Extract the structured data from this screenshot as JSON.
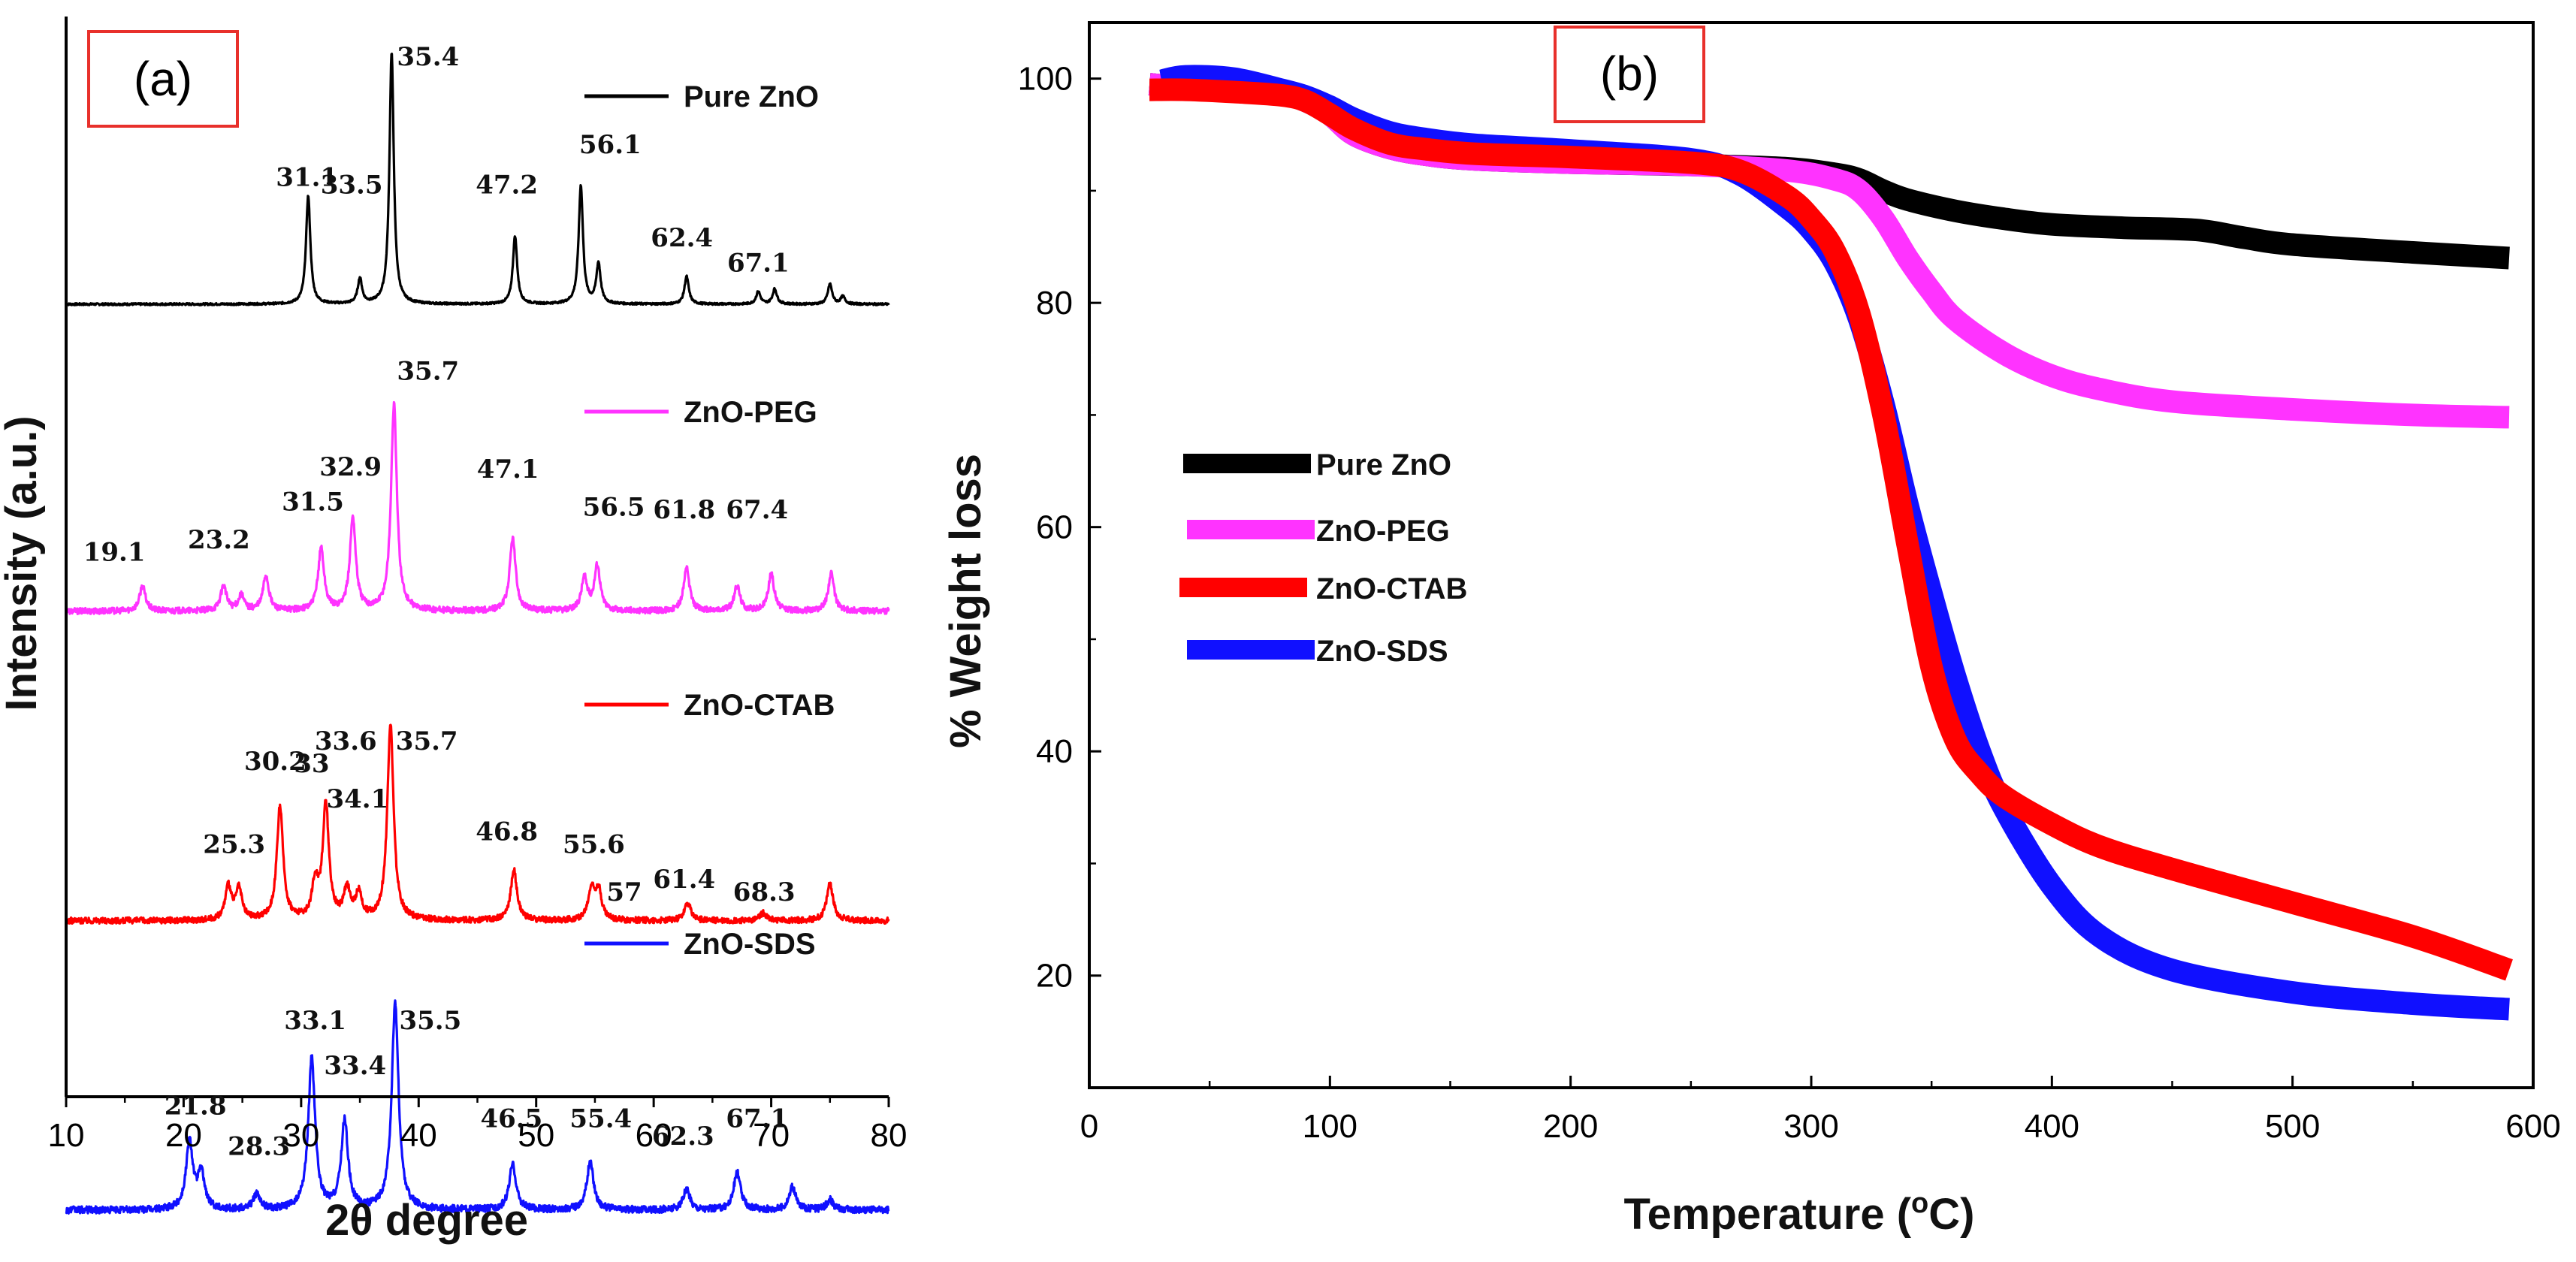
{
  "colors": {
    "pure": "#000000",
    "peg": "#ff33ff",
    "ctab": "#ff0000",
    "sds": "#1010ff",
    "label_box": "#e8302b"
  },
  "chart_data": [
    {
      "id": "a",
      "panel_label": "(a)",
      "type": "line",
      "title": "",
      "xlabel": "2θ degree",
      "ylabel": "Intensity (a.u.)",
      "xlim": [
        10,
        80
      ],
      "xticks": [
        10,
        20,
        30,
        40,
        50,
        60,
        70,
        80
      ],
      "grid": false,
      "legend": "inline per trace (right)",
      "series": [
        {
          "name": "Pure ZnO",
          "color_key": "pure",
          "baseline": 0,
          "noise": 0.004,
          "peak_width": 0.22,
          "peaks": [
            [
              30.6,
              0.43
            ],
            [
              35.0,
              0.1
            ],
            [
              37.7,
              1.0
            ],
            [
              48.2,
              0.27
            ],
            [
              53.8,
              0.47
            ],
            [
              55.3,
              0.16
            ],
            [
              62.8,
              0.11
            ],
            [
              68.9,
              0.05
            ],
            [
              70.3,
              0.06
            ],
            [
              75.0,
              0.08
            ],
            [
              76.1,
              0.03
            ]
          ],
          "labels": [
            {
              "text": "31.1",
              "x": 30.5,
              "y": 0.47
            },
            {
              "text": "33.5",
              "x": 34.3,
              "y": 0.44
            },
            {
              "text": "35.4",
              "x": 40.8,
              "y": 0.95
            },
            {
              "text": "47.2",
              "x": 47.5,
              "y": 0.44
            },
            {
              "text": "56.1",
              "x": 56.3,
              "y": 0.6
            },
            {
              "text": "62.4",
              "x": 62.4,
              "y": 0.23
            },
            {
              "text": "67.1",
              "x": 68.9,
              "y": 0.13
            }
          ]
        },
        {
          "name": "ZnO-PEG",
          "color_key": "peg",
          "baseline": -1.22,
          "noise": 0.012,
          "peak_width": 0.3,
          "peaks": [
            [
              16.5,
              0.1
            ],
            [
              23.4,
              0.1
            ],
            [
              24.9,
              0.06
            ],
            [
              27.0,
              0.14
            ],
            [
              31.7,
              0.25
            ],
            [
              34.4,
              0.37
            ],
            [
              37.9,
              0.82
            ],
            [
              48.0,
              0.29
            ],
            [
              54.1,
              0.13
            ],
            [
              55.2,
              0.18
            ],
            [
              62.8,
              0.17
            ],
            [
              67.1,
              0.1
            ],
            [
              70.0,
              0.15
            ],
            [
              75.1,
              0.15
            ]
          ],
          "labels": [
            {
              "text": "19.1",
              "x": 14.1,
              "y": -1.02
            },
            {
              "text": "23.2",
              "x": 23.0,
              "y": -0.97
            },
            {
              "text": "31.5",
              "x": 31.0,
              "y": -0.82
            },
            {
              "text": "32.9",
              "x": 34.2,
              "y": -0.68
            },
            {
              "text": "35.7",
              "x": 40.8,
              "y": -0.3
            },
            {
              "text": "47.1",
              "x": 47.6,
              "y": -0.69
            },
            {
              "text": "56.5",
              "x": 56.6,
              "y": -0.84
            },
            {
              "text": "61.8",
              "x": 62.6,
              "y": -0.85
            },
            {
              "text": "67.4",
              "x": 68.8,
              "y": -0.85
            }
          ]
        },
        {
          "name": "ZnO-CTAB",
          "color_key": "ctab",
          "baseline": -2.45,
          "noise": 0.012,
          "peak_width": 0.32,
          "peaks": [
            [
              23.8,
              0.13
            ],
            [
              24.7,
              0.12
            ],
            [
              28.2,
              0.45
            ],
            [
              31.2,
              0.14
            ],
            [
              32.1,
              0.45
            ],
            [
              33.9,
              0.12
            ],
            [
              34.9,
              0.1
            ],
            [
              37.6,
              0.78
            ],
            [
              48.1,
              0.2
            ],
            [
              54.7,
              0.12
            ],
            [
              55.3,
              0.12
            ],
            [
              62.9,
              0.07
            ],
            [
              69.3,
              0.03
            ],
            [
              75.0,
              0.15
            ]
          ],
          "labels": [
            {
              "text": "25.3",
              "x": 24.3,
              "y": -2.18
            },
            {
              "text": "30.2",
              "x": 27.8,
              "y": -1.85
            },
            {
              "text": "33",
              "x": 30.9,
              "y": -1.86
            },
            {
              "text": "33.6",
              "x": 33.8,
              "y": -1.77
            },
            {
              "text": "34.1",
              "x": 34.8,
              "y": -2.0
            },
            {
              "text": "35.7",
              "x": 40.7,
              "y": -1.77
            },
            {
              "text": "46.8",
              "x": 47.5,
              "y": -2.13
            },
            {
              "text": "55.6",
              "x": 54.9,
              "y": -2.18
            },
            {
              "text": "57",
              "x": 57.5,
              "y": -2.37
            },
            {
              "text": "61.4",
              "x": 62.6,
              "y": -2.32
            },
            {
              "text": "68.3",
              "x": 69.4,
              "y": -2.37
            }
          ]
        },
        {
          "name": "ZnO-SDS",
          "color_key": "sds",
          "baseline": -3.6,
          "noise": 0.014,
          "peak_width": 0.35,
          "peaks": [
            [
              20.5,
              0.27
            ],
            [
              21.5,
              0.14
            ],
            [
              26.2,
              0.06
            ],
            [
              30.9,
              0.6
            ],
            [
              33.7,
              0.35
            ],
            [
              38.0,
              0.82
            ],
            [
              48.0,
              0.18
            ],
            [
              54.6,
              0.19
            ],
            [
              62.8,
              0.08
            ],
            [
              67.1,
              0.15
            ],
            [
              71.8,
              0.09
            ],
            [
              75.0,
              0.04
            ]
          ],
          "labels": [
            {
              "text": "21.8",
              "x": 21.0,
              "y": -3.22
            },
            {
              "text": "28.3",
              "x": 26.4,
              "y": -3.38
            },
            {
              "text": "33.1",
              "x": 31.2,
              "y": -2.88
            },
            {
              "text": "33.4",
              "x": 34.6,
              "y": -3.06
            },
            {
              "text": "35.5",
              "x": 41.0,
              "y": -2.88
            },
            {
              "text": "46.5",
              "x": 47.9,
              "y": -3.27
            },
            {
              "text": "55.4",
              "x": 55.5,
              "y": -3.27
            },
            {
              "text": "62.3",
              "x": 62.5,
              "y": -3.34
            },
            {
              "text": "67.1",
              "x": 68.8,
              "y": -3.27
            }
          ]
        }
      ]
    },
    {
      "id": "b",
      "panel_label": "(b)",
      "type": "line",
      "title": "",
      "xlabel": "Temperature (°C)",
      "ylabel": "% Weight loss",
      "xlim": [
        0,
        600
      ],
      "ylim": [
        10,
        105
      ],
      "xticks": [
        0,
        100,
        200,
        300,
        400,
        500,
        600
      ],
      "yticks": [
        20,
        40,
        60,
        80,
        100
      ],
      "grid": false,
      "legend": "center-left",
      "series": [
        {
          "name": "Pure ZnO",
          "color_key": "pure",
          "x": [
            25,
            40,
            60,
            80,
            90,
            100,
            110,
            125,
            140,
            160,
            200,
            250,
            290,
            310,
            320,
            330,
            340,
            360,
            380,
            400,
            430,
            460,
            480,
            500,
            550,
            590
          ],
          "y": [
            99.5,
            99.2,
            99.0,
            98.6,
            98.0,
            96.8,
            95.0,
            93.8,
            93.2,
            92.8,
            92.5,
            92.3,
            92.0,
            91.5,
            91.0,
            90.0,
            89.2,
            88.2,
            87.5,
            87.0,
            86.7,
            86.5,
            85.8,
            85.2,
            84.5,
            84.0
          ]
        },
        {
          "name": "ZnO-PEG",
          "color_key": "peg",
          "x": [
            25,
            40,
            60,
            80,
            90,
            100,
            110,
            125,
            140,
            160,
            200,
            250,
            290,
            310,
            320,
            330,
            340,
            350,
            360,
            380,
            400,
            420,
            450,
            500,
            550,
            590
          ],
          "y": [
            99.5,
            99.2,
            99.0,
            98.6,
            98.0,
            96.8,
            95.0,
            93.8,
            93.2,
            92.8,
            92.5,
            92.3,
            91.8,
            91.0,
            90.0,
            87.5,
            84.0,
            81.0,
            78.5,
            75.5,
            73.5,
            72.3,
            71.2,
            70.5,
            70.0,
            69.8
          ]
        },
        {
          "name": "ZnO-CTAB",
          "color_key": "ctab",
          "x": [
            25,
            40,
            60,
            80,
            90,
            100,
            110,
            125,
            140,
            160,
            200,
            250,
            270,
            290,
            300,
            310,
            320,
            330,
            340,
            350,
            360,
            370,
            380,
            400,
            420,
            450,
            500,
            550,
            590
          ],
          "y": [
            99.0,
            99.0,
            98.8,
            98.5,
            98.0,
            96.8,
            95.5,
            94.2,
            93.7,
            93.3,
            93.0,
            92.5,
            91.8,
            89.5,
            87.5,
            84.5,
            79.0,
            70.0,
            58.5,
            47.5,
            41.0,
            38.0,
            36.0,
            33.5,
            31.5,
            29.5,
            26.5,
            23.5,
            20.5
          ]
        },
        {
          "name": "ZnO-SDS",
          "color_key": "sds",
          "x": [
            30,
            40,
            60,
            80,
            90,
            100,
            110,
            125,
            140,
            160,
            200,
            250,
            270,
            290,
            300,
            310,
            320,
            330,
            340,
            350,
            360,
            370,
            380,
            400,
            420,
            450,
            500,
            550,
            590
          ],
          "y": [
            99.8,
            100.2,
            100.0,
            99.0,
            98.4,
            97.5,
            96.4,
            95.2,
            94.6,
            94.1,
            93.6,
            92.8,
            91.5,
            88.5,
            86.5,
            83.5,
            78.5,
            71.0,
            62.0,
            54.0,
            46.5,
            40.0,
            35.0,
            28.0,
            23.5,
            20.5,
            18.5,
            17.5,
            17.0
          ]
        }
      ]
    }
  ]
}
